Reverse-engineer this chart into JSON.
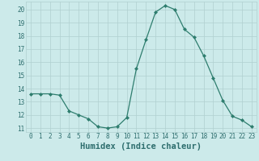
{
  "x": [
    0,
    1,
    2,
    3,
    4,
    5,
    6,
    7,
    8,
    9,
    10,
    11,
    12,
    13,
    14,
    15,
    16,
    17,
    18,
    19,
    20,
    21,
    22,
    23
  ],
  "y": [
    13.6,
    13.6,
    13.6,
    13.5,
    12.3,
    12.0,
    11.7,
    11.1,
    11.0,
    11.1,
    11.8,
    15.5,
    17.7,
    19.8,
    20.3,
    20.0,
    18.5,
    17.9,
    16.5,
    14.8,
    13.1,
    11.9,
    11.6,
    11.1
  ],
  "line_color": "#2e7d6e",
  "marker": "D",
  "marker_size": 2.0,
  "bg_color": "#cceaea",
  "grid_color": "#b0d0d0",
  "xlabel": "Humidex (Indice chaleur)",
  "xlim": [
    -0.5,
    23.5
  ],
  "ylim": [
    10.7,
    20.6
  ],
  "yticks": [
    11,
    12,
    13,
    14,
    15,
    16,
    17,
    18,
    19,
    20
  ],
  "xticks": [
    0,
    1,
    2,
    3,
    4,
    5,
    6,
    7,
    8,
    9,
    10,
    11,
    12,
    13,
    14,
    15,
    16,
    17,
    18,
    19,
    20,
    21,
    22,
    23
  ],
  "tick_label_fontsize": 5.5,
  "xlabel_fontsize": 7.5,
  "axis_text_color": "#2e6e6e"
}
